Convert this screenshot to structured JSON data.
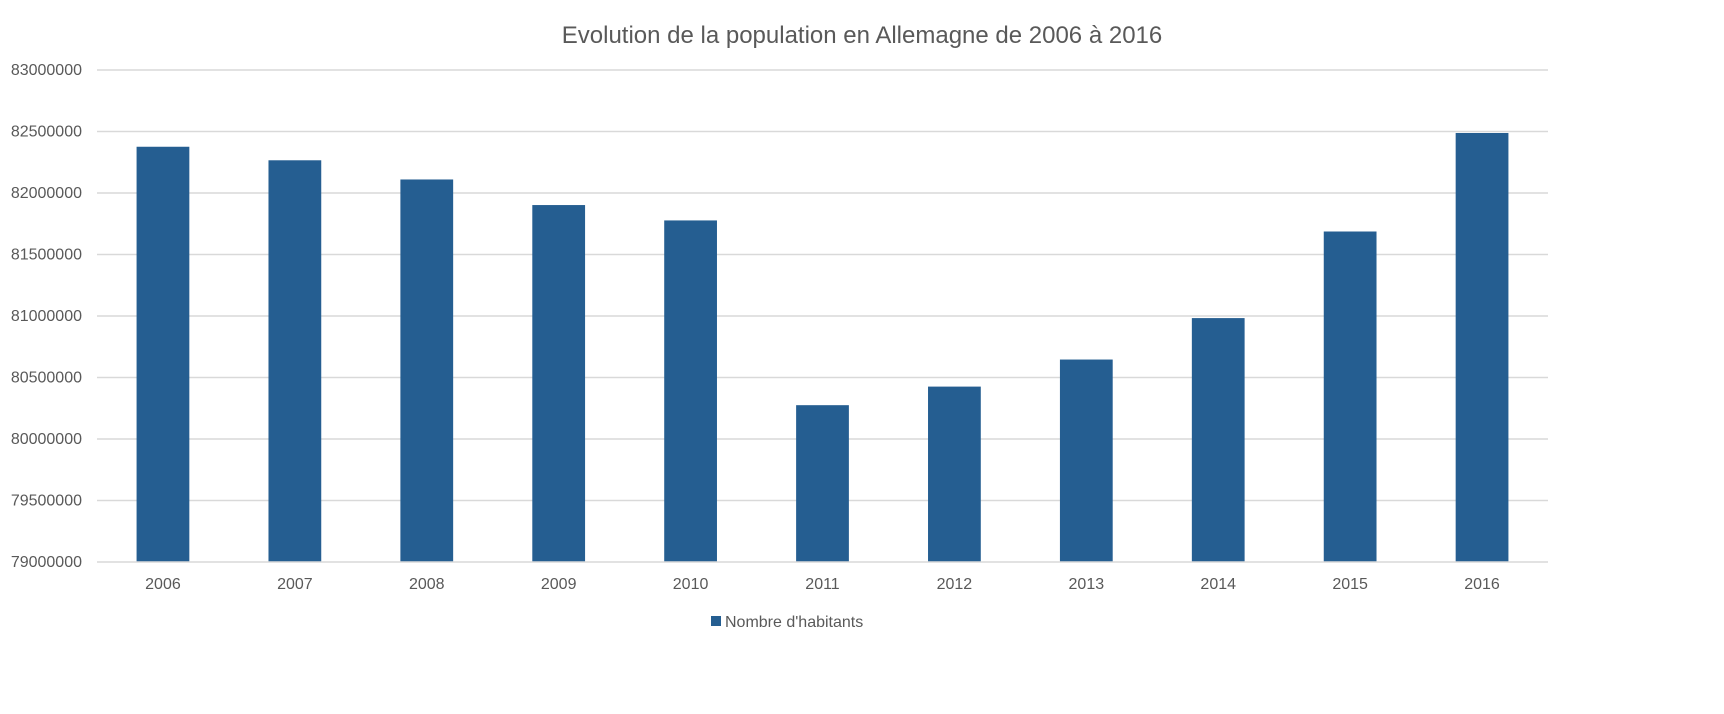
{
  "chart_data": {
    "type": "bar",
    "title": "Evolution de la population en Allemagne de 2006 à 2016",
    "xlabel": "",
    "ylabel": "",
    "categories": [
      "2006",
      "2007",
      "2008",
      "2009",
      "2010",
      "2011",
      "2012",
      "2013",
      "2014",
      "2015",
      "2016"
    ],
    "series": [
      {
        "name": "Nombre d'habitants",
        "values": [
          82376000,
          82266000,
          82110000,
          81902000,
          81777000,
          80275000,
          80426000,
          80646000,
          80983000,
          81687000,
          82488000
        ],
        "color": "#255e91"
      }
    ],
    "ylim": [
      79000000,
      83000000
    ],
    "yticks": [
      "79000000",
      "79500000",
      "80000000",
      "80500000",
      "81000000",
      "81500000",
      "82000000",
      "82500000",
      "83000000"
    ],
    "grid": true,
    "legend_position": "bottom"
  }
}
